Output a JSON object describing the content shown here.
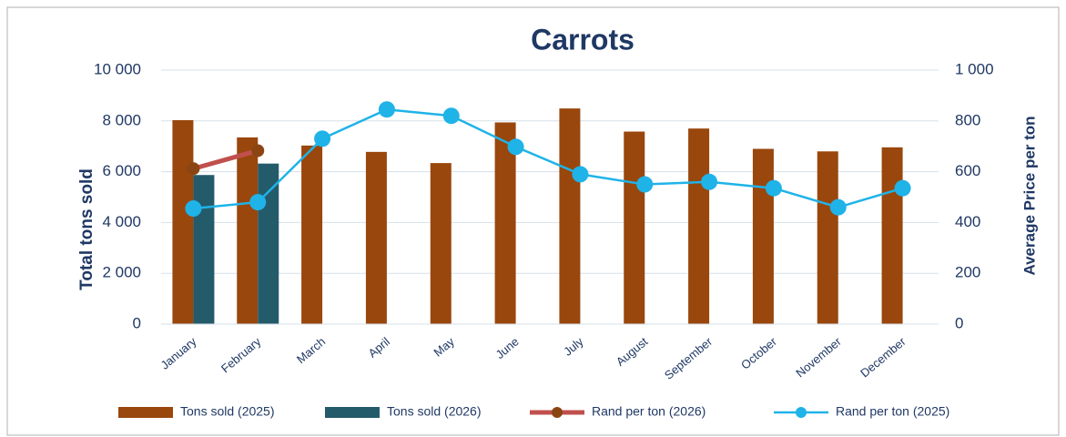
{
  "chart_data": {
    "type": "bar",
    "title": "Carrots",
    "y_label": "Total tons sold",
    "y2_label": "Average Price per ton",
    "categories": [
      "January",
      "February",
      "March",
      "April",
      "May",
      "June",
      "July",
      "August",
      "September",
      "October",
      "November",
      "December"
    ],
    "series": [
      {
        "name": "Tons sold (2025)",
        "type": "bar",
        "color": "#99470d",
        "values": [
          8030,
          7350,
          7030,
          6780,
          6340,
          7940,
          8490,
          7580,
          7700,
          6900,
          6800,
          6960
        ]
      },
      {
        "name": "Tons sold (2026)",
        "type": "bar",
        "color": "#245b6b",
        "values": [
          5870,
          6320,
          null,
          null,
          null,
          null,
          null,
          null,
          null,
          null,
          null,
          null
        ]
      },
      {
        "name": "Rand per ton (2026)",
        "type": "line",
        "axis": "y2",
        "color": "#c0504d",
        "marker_color": "#8b4513",
        "values": [
          612,
          683,
          null,
          null,
          null,
          null,
          null,
          null,
          null,
          null,
          null,
          null
        ]
      },
      {
        "name": "Rand per ton (2025)",
        "type": "line",
        "axis": "y2",
        "color": "#1fb3e8",
        "marker_color": "#1fb3e8",
        "values": [
          455,
          480,
          730,
          845,
          820,
          698,
          590,
          550,
          560,
          535,
          460,
          535
        ]
      }
    ],
    "ylim": [
      0,
      10000
    ],
    "yticks": [
      0,
      {
        "value": 2000,
        "label": "2 000"
      },
      {
        "value": 4000,
        "label": "4 000"
      },
      {
        "value": 6000,
        "label": "6 000"
      },
      {
        "value": 8000,
        "label": "8 000"
      },
      {
        "value": 10000,
        "label": "10 000"
      }
    ],
    "y2lim": [
      0,
      1000
    ],
    "y2ticks": [
      0,
      200,
      400,
      600,
      800,
      {
        "value": 1000,
        "label": "1 000"
      }
    ],
    "grid": true
  }
}
